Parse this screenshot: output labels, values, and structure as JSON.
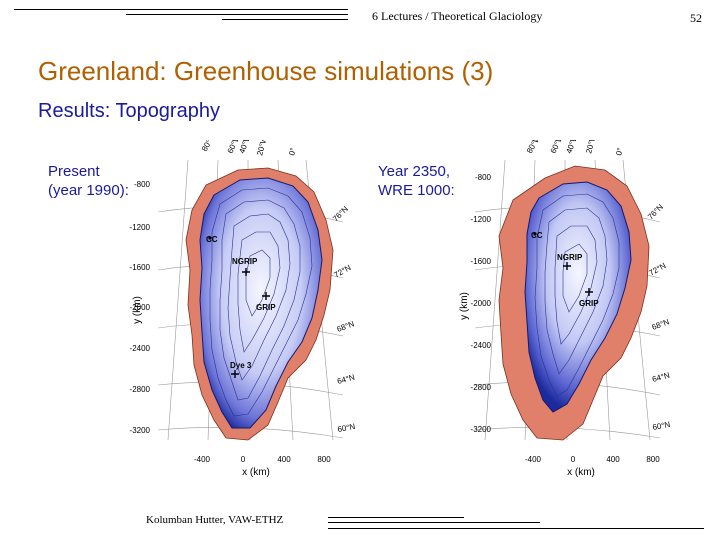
{
  "header": {
    "course": "6 Lectures / Theoretical Glaciology",
    "page_number": "52"
  },
  "title": "Greenland: Greenhouse simulations (3)",
  "subtitle": "Results: Topography",
  "panels": [
    {
      "caption_line1": "Present",
      "caption_line2": "(year 1990):",
      "y_label": "y (km)",
      "x_label": "x (km)",
      "y_ticks": [
        "-800",
        "-1200",
        "-1600",
        "-2000",
        "-2400",
        "-2800",
        "-3200"
      ],
      "x_ticks": [
        "-400",
        "0",
        "400",
        "800"
      ],
      "lon_labels": [
        "80°W",
        "60°W",
        "40°W",
        "20°W",
        "0°"
      ],
      "lat_labels": [
        "76°N",
        "72°N",
        "68°N",
        "64°N",
        "60°N"
      ],
      "sites": [
        "CC",
        "NGRIP",
        "GRIP",
        "Dye 3"
      ]
    },
    {
      "caption_line1": "Year 2350,",
      "caption_line2": "WRE 1000:",
      "y_label": "y (km)",
      "x_label": "x (km)",
      "y_ticks": [
        "-800",
        "-1200",
        "-1600",
        "-2000",
        "-2400",
        "-2800",
        "-3200"
      ],
      "x_ticks": [
        "-400",
        "0",
        "400",
        "800"
      ],
      "lon_labels": [
        "80°W",
        "60°W",
        "40°W",
        "20°W",
        "0°"
      ],
      "lat_labels": [
        "76°N",
        "72°N",
        "68°N",
        "64°N",
        "60°N"
      ],
      "sites": [
        "CC",
        "NGRIP",
        "GRIP"
      ]
    }
  ],
  "footer": {
    "author": "Kolumban Hutter, VAW-ETHZ"
  },
  "colors": {
    "title": "#b06000",
    "subtitle": "#1a1a9a",
    "ice_dark": "#1c2a9e",
    "ice_light": "#f4f6ff",
    "land": "#e0806a"
  }
}
